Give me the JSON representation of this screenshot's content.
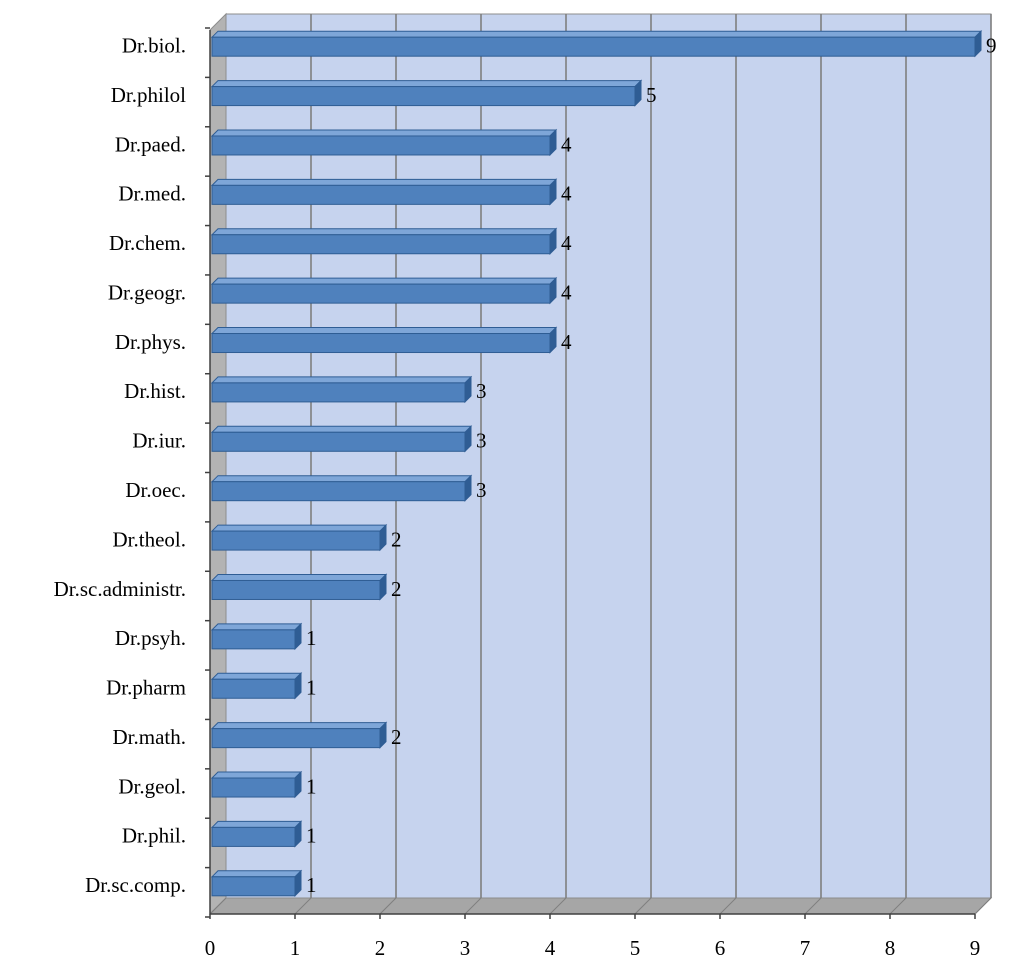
{
  "chart_data": {
    "type": "bar",
    "orientation": "horizontal",
    "style": "3d",
    "categories": [
      "Dr.biol.",
      "Dr.philol",
      "Dr.paed.",
      "Dr.med.",
      "Dr.chem.",
      "Dr.geogr.",
      "Dr.phys.",
      "Dr.hist.",
      "Dr.iur.",
      "Dr.oec.",
      "Dr.theol.",
      "Dr.sc.administr.",
      "Dr.psyh.",
      "Dr.pharm",
      "Dr.math.",
      "Dr.geol.",
      "Dr.phil.",
      "Dr.sc.comp."
    ],
    "values": [
      9,
      5,
      4,
      4,
      4,
      4,
      4,
      3,
      3,
      3,
      2,
      2,
      1,
      1,
      2,
      1,
      1,
      1
    ],
    "x_ticks": [
      "0",
      "1",
      "2",
      "3",
      "4",
      "5",
      "6",
      "7",
      "8",
      "9"
    ],
    "xlim": [
      0,
      9
    ],
    "grid": true,
    "legend": false,
    "data_labels": true,
    "colors": {
      "bar": "#4f81bd",
      "bar_top": "#7ea6d8",
      "bar_side": "#2f5d94",
      "plot_background": "#c6d3ee",
      "gridline": "#7f7f7f"
    }
  }
}
